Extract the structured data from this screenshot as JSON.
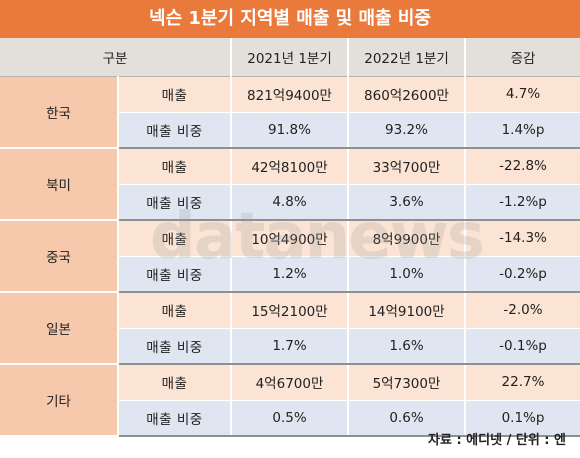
{
  "title": "넥슨 1분기 지역별 매출 및 매출 비중",
  "table": {
    "headers": [
      "구분",
      "2021년 1분기",
      "2022년 1분기",
      "증감"
    ],
    "rows": [
      {
        "region": "한국",
        "sales_label": "매출",
        "sales": [
          "821억9400만",
          "860억2600만",
          "4.7%"
        ],
        "share_label": "매출 비중",
        "share": [
          "91.8%",
          "93.2%",
          "1.4%p"
        ]
      },
      {
        "region": "북미",
        "sales_label": "매출",
        "sales": [
          "42억8100만",
          "33억700만",
          "-22.8%"
        ],
        "share_label": "매출 비중",
        "share": [
          "4.8%",
          "3.6%",
          "-1.2%p"
        ]
      },
      {
        "region": "중국",
        "sales_label": "매출",
        "sales": [
          "10억4900만",
          "8억9900만",
          "-14.3%"
        ],
        "share_label": "매출 비중",
        "share": [
          "1.2%",
          "1.0%",
          "-0.2%p"
        ]
      },
      {
        "region": "일본",
        "sales_label": "매출",
        "sales": [
          "15억2100만",
          "14억9100만",
          "-2.0%"
        ],
        "share_label": "매출 비중",
        "share": [
          "1.7%",
          "1.6%",
          "-0.1%p"
        ]
      },
      {
        "region": "기타",
        "sales_label": "매출",
        "sales": [
          "4억6700만",
          "5억7300만",
          "22.7%"
        ],
        "share_label": "매출 비중",
        "share": [
          "0.5%",
          "0.6%",
          "0.1%p"
        ]
      }
    ]
  },
  "watermark": "datanews",
  "source": "자료 : 에디넷 / 단위 : 엔",
  "colors": {
    "title_bg": "#ea7a3c",
    "region_bg": "#f6c9ac",
    "sales_bg": "#fbe4d4",
    "share_bg": "#dfe6f1",
    "header_bg": "#e3e0dc"
  }
}
